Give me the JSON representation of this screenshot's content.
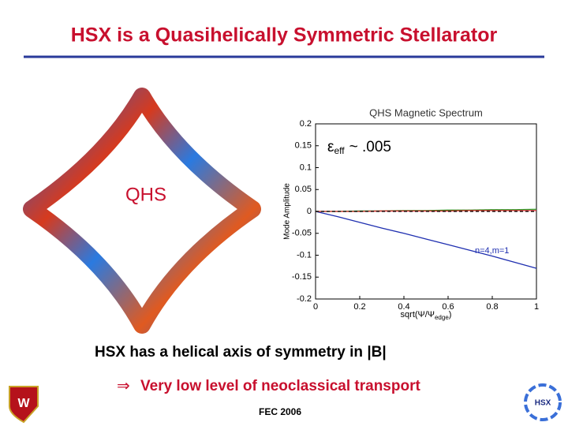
{
  "title": "HSX is a Quasihelically Symmetric Stellarator",
  "image_label": "QHS",
  "chart_data": {
    "type": "line",
    "title": "QHS Magnetic Spectrum",
    "annotation": [
      "ε",
      "eff",
      "~ .005"
    ],
    "x_label": [
      "sqrt(Ψ/Ψ",
      "edge",
      ")"
    ],
    "y_label": "Mode Amplitude",
    "x": [
      0,
      0.1,
      0.2,
      0.3,
      0.4,
      0.5,
      0.6,
      0.7,
      0.8,
      0.9,
      1
    ],
    "series": [
      {
        "name": "n=4,m=1",
        "color": "#1f2fb0",
        "values": [
          0,
          -0.012,
          -0.025,
          -0.038,
          -0.05,
          -0.063,
          -0.076,
          -0.089,
          -0.102,
          -0.116,
          -0.13
        ]
      },
      {
        "color": "#2ca02c",
        "values": [
          0,
          0,
          0.001,
          0.001,
          0.002,
          0.002,
          0.003,
          0.003,
          0.004,
          0.004,
          0.005
        ]
      },
      {
        "color": "#d62728",
        "values": [
          0,
          0,
          0,
          0.001,
          0.001,
          0.001,
          0.001,
          0.002,
          0.002,
          0.002,
          0.002
        ]
      },
      {
        "color": "#000000",
        "dashed": true,
        "values": [
          0,
          0,
          0,
          0,
          0,
          0,
          0,
          0,
          0,
          0,
          0
        ]
      }
    ],
    "xlim": [
      0,
      1
    ],
    "ylim": [
      -0.2,
      0.2
    ],
    "xticks": [
      0,
      0.2,
      0.4,
      0.6,
      0.8,
      1
    ],
    "yticks": [
      -0.2,
      -0.15,
      -0.1,
      -0.05,
      0,
      0.05,
      0.1,
      0.15,
      0.2
    ]
  },
  "bullet": "HSX has a helical axis of symmetry in |B|",
  "bullet_symbol": "⇒",
  "sub_bullet": "Very low level of neoclassical transport",
  "footer": "FEC 2006",
  "crest_letter": "W",
  "logo_text": "HSX"
}
